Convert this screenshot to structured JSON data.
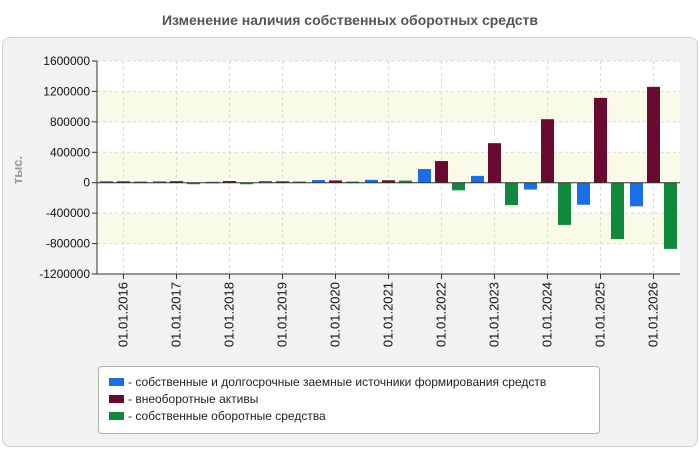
{
  "title": "Изменение наличия собственных оборотных средств",
  "chart_data": {
    "type": "bar",
    "ylabel": "тыс.",
    "ylim": [
      -1200000,
      1600000
    ],
    "yticks": [
      1600000,
      1200000,
      800000,
      400000,
      0,
      -400000,
      -800000,
      -1200000
    ],
    "ytick_labels": [
      "1600000",
      "1200000",
      "800000",
      "400000",
      "0",
      "-400000",
      "-800000",
      "-1200000"
    ],
    "categories": [
      "01.01.2016",
      "01.01.2017",
      "01.01.2018",
      "01.01.2019",
      "01.01.2020",
      "01.01.2021",
      "01.01.2022",
      "01.01.2023",
      "01.01.2024",
      "01.01.2025",
      "01.01.2026"
    ],
    "series": [
      {
        "name": "собственные и долгосрочные заемные источники формирования средств",
        "color": "#1a6fe8",
        "values": [
          20000,
          18000,
          12000,
          22000,
          35000,
          38000,
          180000,
          90000,
          -90000,
          -290000,
          -310000
        ]
      },
      {
        "name": "внеоборотные активы",
        "color": "#6b0a30",
        "values": [
          18000,
          20000,
          22000,
          18000,
          30000,
          32000,
          285000,
          520000,
          835000,
          1115000,
          1260000
        ]
      },
      {
        "name": "собственные оборотные средства",
        "color": "#0f8a3a",
        "values": [
          15000,
          -5000,
          -20000,
          15000,
          15000,
          28000,
          -100000,
          -295000,
          -555000,
          -740000,
          -870000
        ]
      }
    ],
    "legend_position": "bottom",
    "grid": true
  }
}
